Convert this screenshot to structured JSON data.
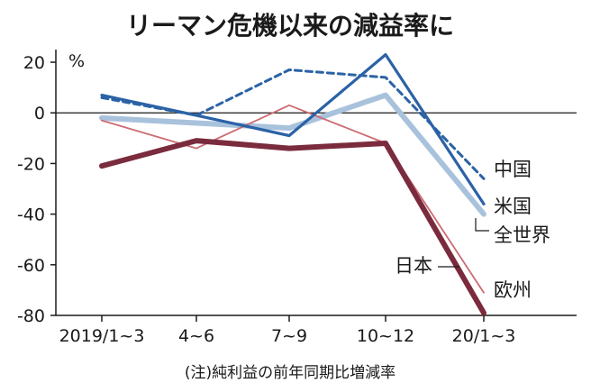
{
  "chart_data": {
    "type": "line",
    "title": "リーマン危機以来の減益率に",
    "unit": "%",
    "note": "(注)純利益の前年同期比増減率",
    "categories": [
      "2019/1~3",
      "4~6",
      "7~9",
      "10~12",
      "20/1~3"
    ],
    "ylim": [
      -80,
      25
    ],
    "yticks": [
      20,
      0,
      -20,
      -40,
      -60,
      -80
    ],
    "grid": false,
    "series": [
      {
        "name": "中国",
        "values": [
          6,
          -1,
          17,
          14,
          -26
        ],
        "color": "#2b62a6",
        "style": "dashed"
      },
      {
        "name": "米国",
        "values": [
          7,
          -1,
          -9,
          23,
          -36
        ],
        "color": "#2b62a6",
        "style": "solid"
      },
      {
        "name": "全世界",
        "values": [
          -2,
          -4,
          -6,
          7,
          -40
        ],
        "color": "#a9c2dc",
        "style": "thick"
      },
      {
        "name": "日本",
        "values": [
          -21,
          -11,
          -14,
          -12,
          -79
        ],
        "color": "#7a2b3d",
        "style": "thick"
      },
      {
        "name": "欧州",
        "values": [
          -3,
          -14,
          3,
          -12,
          -71
        ],
        "color": "#cc6b72",
        "style": "thin"
      }
    ]
  }
}
